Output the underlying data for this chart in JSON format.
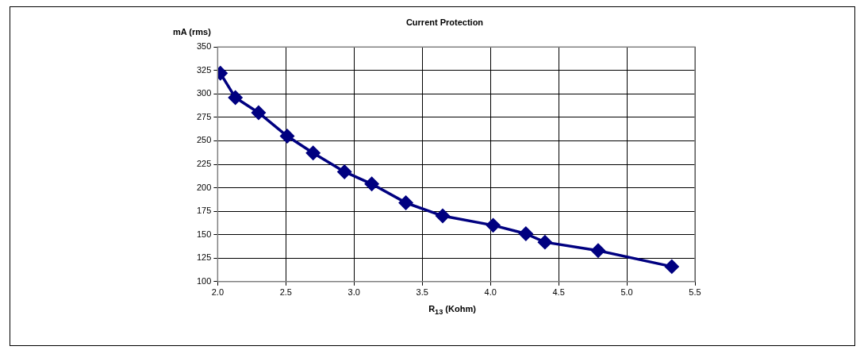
{
  "chart_data": {
    "type": "line",
    "title": "Current Protection",
    "xlabel": "R$_{13}$ (Kohm)",
    "ylabel": "mA (rms)",
    "x": [
      2.02,
      2.13,
      2.3,
      2.51,
      2.7,
      2.93,
      3.13,
      3.38,
      3.65,
      4.02,
      4.26,
      4.4,
      4.79,
      5.33
    ],
    "series": [
      {
        "color": "#000080",
        "values": [
          322,
          296,
          280,
          255,
          237,
          217,
          204,
          184,
          170,
          160,
          151,
          142,
          133,
          116
        ]
      }
    ],
    "xlim": [
      2.0,
      5.5
    ],
    "xticks": [
      {
        "value": 2.0,
        "label": "2.0"
      },
      {
        "value": 2.5,
        "label": "2.5"
      },
      {
        "value": 3.0,
        "label": "3.0"
      },
      {
        "value": 3.5,
        "label": "3.5"
      },
      {
        "value": 4.0,
        "label": "4.0"
      },
      {
        "value": 4.5,
        "label": "4.5"
      },
      {
        "value": 5.0,
        "label": "5.0"
      },
      {
        "value": 5.5,
        "label": "5.5"
      }
    ],
    "ylim": [
      100,
      350
    ],
    "yticks": [
      100,
      125,
      150,
      175,
      200,
      225,
      250,
      275,
      300,
      325,
      350
    ],
    "grid": true,
    "legend": false,
    "marker": "diamond",
    "line_style": "solid"
  }
}
